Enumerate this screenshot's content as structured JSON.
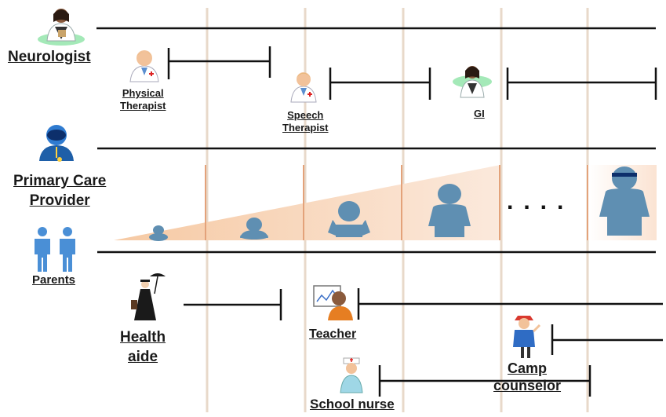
{
  "providers": {
    "neurologist": "Neurologist",
    "physical_therapist": [
      "Physical",
      "Therapist"
    ],
    "speech_therapist": [
      "Speech",
      "Therapist"
    ],
    "gi": "GI",
    "primary_care": [
      "Primary Care",
      "Provider"
    ],
    "parents": "Parents",
    "health_aide": [
      "Health",
      "aide"
    ],
    "teacher": "Teacher",
    "school_nurse": "School nurse",
    "camp_counselor": [
      "Camp",
      "counselor"
    ]
  },
  "growth_ellipsis": "....",
  "colors": {
    "timeline": "#111111",
    "vertical_guides": "#e6d6c6",
    "stage_dividers": "#e3a27a",
    "growth_wedge": "#f3c9a6",
    "child_figure": "#5f8fb2",
    "parents_figure": "#4a8fd6",
    "doctor_coat": "#ffffff",
    "aide_figure": "#1a1a1a"
  },
  "icons": {
    "neurologist": "female-doctor-icon",
    "physical_therapist": "male-doctor-icon",
    "speech_therapist": "male-doctor-icon",
    "gi": "female-doctor-icon",
    "primary_care": "stethoscope-person-icon",
    "parents": "parents-icon",
    "health_aide": "nanny-umbrella-icon",
    "teacher": "teacher-blackboard-icon",
    "school_nurse": "nurse-icon",
    "camp_counselor": "camp-counselor-icon",
    "growth_stages": [
      "infant-icon",
      "toddler-icon",
      "young-child-icon",
      "child-icon",
      "teen-icon"
    ]
  }
}
